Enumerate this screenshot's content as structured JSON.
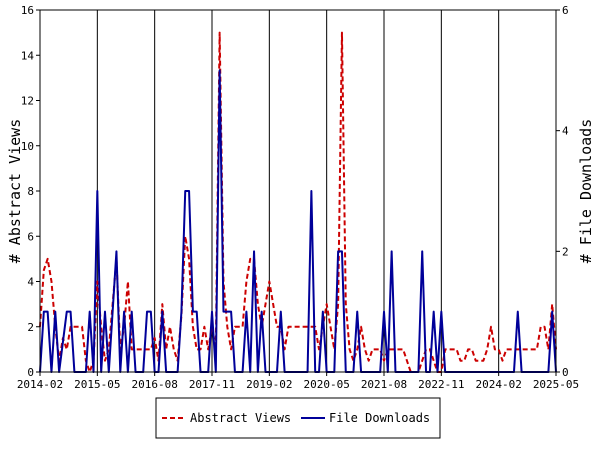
{
  "chart_data": {
    "type": "line",
    "title": "",
    "xlabel": "",
    "ylabel": "# Abstract Views",
    "y2label": "# File Downloads",
    "x_ticks": [
      "2014-02",
      "2015-05",
      "2016-08",
      "2017-11",
      "2019-02",
      "2020-05",
      "2021-08",
      "2022-11",
      "2024-02",
      "2025-05"
    ],
    "xlim": [
      "2014-02",
      "2025-05"
    ],
    "ylim": [
      0,
      16
    ],
    "y_ticks": [
      0,
      2,
      4,
      6,
      8,
      10,
      12,
      14,
      16
    ],
    "y2lim": [
      0,
      6
    ],
    "y2_ticks": [
      0,
      2,
      4,
      6
    ],
    "grid": true,
    "legend_position": "bottom-center",
    "series": [
      {
        "name": "Abstract Views",
        "axis": "left",
        "color": "#cc0000",
        "dash": "dashed",
        "points": [
          [
            "2014-02",
            2
          ],
          [
            "2014-03",
            4.5
          ],
          [
            "2014-04",
            5
          ],
          [
            "2014-05",
            4
          ],
          [
            "2014-06",
            2
          ],
          [
            "2014-07",
            0.5
          ],
          [
            "2014-08",
            1.5
          ],
          [
            "2014-09",
            1
          ],
          [
            "2014-10",
            2
          ],
          [
            "2014-11",
            2
          ],
          [
            "2014-12",
            2
          ],
          [
            "2015-01",
            2
          ],
          [
            "2015-02",
            0.5
          ],
          [
            "2015-03",
            0
          ],
          [
            "2015-04",
            0.5
          ],
          [
            "2015-05",
            4
          ],
          [
            "2015-06",
            2
          ],
          [
            "2015-07",
            0.5
          ],
          [
            "2015-08",
            1
          ],
          [
            "2015-09",
            3
          ],
          [
            "2015-10",
            5
          ],
          [
            "2015-11",
            1
          ],
          [
            "2015-12",
            2
          ],
          [
            "2016-01",
            4
          ],
          [
            "2016-02",
            1
          ],
          [
            "2016-03",
            1
          ],
          [
            "2016-04",
            1
          ],
          [
            "2016-05",
            1
          ],
          [
            "2016-06",
            1
          ],
          [
            "2016-07",
            1
          ],
          [
            "2016-08",
            1.5
          ],
          [
            "2016-09",
            0.5
          ],
          [
            "2016-10",
            3
          ],
          [
            "2016-11",
            1
          ],
          [
            "2016-12",
            2
          ],
          [
            "2017-01",
            1
          ],
          [
            "2017-02",
            0.5
          ],
          [
            "2017-03",
            2.5
          ],
          [
            "2017-04",
            6
          ],
          [
            "2017-05",
            5
          ],
          [
            "2017-06",
            2
          ],
          [
            "2017-07",
            1
          ],
          [
            "2017-08",
            1
          ],
          [
            "2017-09",
            2
          ],
          [
            "2017-10",
            1
          ],
          [
            "2017-11",
            2
          ],
          [
            "2017-12",
            1
          ],
          [
            "2018-01",
            15
          ],
          [
            "2018-02",
            4
          ],
          [
            "2018-03",
            2
          ],
          [
            "2018-04",
            1
          ],
          [
            "2018-05",
            2
          ],
          [
            "2018-06",
            2
          ],
          [
            "2018-07",
            2
          ],
          [
            "2018-08",
            4
          ],
          [
            "2018-09",
            5
          ],
          [
            "2018-10",
            5
          ],
          [
            "2018-11",
            3
          ],
          [
            "2018-12",
            2
          ],
          [
            "2019-01",
            3
          ],
          [
            "2019-02",
            4
          ],
          [
            "2019-03",
            3
          ],
          [
            "2019-04",
            2
          ],
          [
            "2019-05",
            2
          ],
          [
            "2019-06",
            1
          ],
          [
            "2019-07",
            2
          ],
          [
            "2019-08",
            2
          ],
          [
            "2019-09",
            2
          ],
          [
            "2019-10",
            2
          ],
          [
            "2019-11",
            2
          ],
          [
            "2019-12",
            2
          ],
          [
            "2020-01",
            2
          ],
          [
            "2020-02",
            2
          ],
          [
            "2020-03",
            1
          ],
          [
            "2020-04",
            2
          ],
          [
            "2020-05",
            3
          ],
          [
            "2020-06",
            2
          ],
          [
            "2020-07",
            1
          ],
          [
            "2020-08",
            3
          ],
          [
            "2020-09",
            15
          ],
          [
            "2020-10",
            3
          ],
          [
            "2020-11",
            1
          ],
          [
            "2020-12",
            0.5
          ],
          [
            "2021-01",
            1
          ],
          [
            "2021-02",
            2
          ],
          [
            "2021-03",
            1
          ],
          [
            "2021-04",
            0.5
          ],
          [
            "2021-05",
            1
          ],
          [
            "2021-06",
            1
          ],
          [
            "2021-07",
            1
          ],
          [
            "2021-08",
            0.5
          ],
          [
            "2021-09",
            1
          ],
          [
            "2021-10",
            1
          ],
          [
            "2021-11",
            1
          ],
          [
            "2021-12",
            1
          ],
          [
            "2022-01",
            1
          ],
          [
            "2022-02",
            0.5
          ],
          [
            "2022-03",
            0
          ],
          [
            "2022-04",
            0
          ],
          [
            "2022-05",
            0
          ],
          [
            "2022-06",
            0.5
          ],
          [
            "2022-07",
            1
          ],
          [
            "2022-08",
            1
          ],
          [
            "2022-09",
            0.5
          ],
          [
            "2022-10",
            0
          ],
          [
            "2022-11",
            0
          ],
          [
            "2022-12",
            1
          ],
          [
            "2023-01",
            1
          ],
          [
            "2023-02",
            1
          ],
          [
            "2023-03",
            1
          ],
          [
            "2023-04",
            0.5
          ],
          [
            "2023-05",
            0.5
          ],
          [
            "2023-06",
            1
          ],
          [
            "2023-07",
            1
          ],
          [
            "2023-08",
            0.5
          ],
          [
            "2023-09",
            0.5
          ],
          [
            "2023-10",
            0.5
          ],
          [
            "2023-11",
            1
          ],
          [
            "2023-12",
            2
          ],
          [
            "2024-01",
            1
          ],
          [
            "2024-02",
            1
          ],
          [
            "2024-03",
            0.5
          ],
          [
            "2024-04",
            1
          ],
          [
            "2024-05",
            1
          ],
          [
            "2024-06",
            1
          ],
          [
            "2024-07",
            1
          ],
          [
            "2024-08",
            1
          ],
          [
            "2024-09",
            1
          ],
          [
            "2024-10",
            1
          ],
          [
            "2024-11",
            1
          ],
          [
            "2024-12",
            1
          ],
          [
            "2025-01",
            2
          ],
          [
            "2025-02",
            2
          ],
          [
            "2025-03",
            1
          ],
          [
            "2025-04",
            3
          ],
          [
            "2025-05",
            1
          ]
        ]
      },
      {
        "name": "File Downloads",
        "axis": "right",
        "color": "#000099",
        "dash": "solid",
        "points": [
          [
            "2014-02",
            0
          ],
          [
            "2014-03",
            1
          ],
          [
            "2014-04",
            1
          ],
          [
            "2014-05",
            0
          ],
          [
            "2014-06",
            1
          ],
          [
            "2014-07",
            0
          ],
          [
            "2014-08",
            0.5
          ],
          [
            "2014-09",
            1
          ],
          [
            "2014-10",
            1
          ],
          [
            "2014-11",
            0
          ],
          [
            "2014-12",
            0
          ],
          [
            "2015-01",
            0
          ],
          [
            "2015-02",
            0
          ],
          [
            "2015-03",
            1
          ],
          [
            "2015-04",
            0
          ],
          [
            "2015-05",
            3
          ],
          [
            "2015-06",
            0
          ],
          [
            "2015-07",
            1
          ],
          [
            "2015-08",
            0
          ],
          [
            "2015-09",
            1
          ],
          [
            "2015-10",
            2
          ],
          [
            "2015-11",
            0
          ],
          [
            "2015-12",
            1
          ],
          [
            "2016-01",
            0
          ],
          [
            "2016-02",
            1
          ],
          [
            "2016-03",
            0
          ],
          [
            "2016-04",
            0
          ],
          [
            "2016-05",
            0
          ],
          [
            "2016-06",
            1
          ],
          [
            "2016-07",
            1
          ],
          [
            "2016-08",
            0
          ],
          [
            "2016-09",
            0
          ],
          [
            "2016-10",
            1
          ],
          [
            "2016-11",
            0
          ],
          [
            "2016-12",
            0
          ],
          [
            "2017-01",
            0
          ],
          [
            "2017-02",
            0
          ],
          [
            "2017-03",
            1
          ],
          [
            "2017-04",
            3
          ],
          [
            "2017-05",
            3
          ],
          [
            "2017-06",
            1
          ],
          [
            "2017-07",
            1
          ],
          [
            "2017-08",
            0
          ],
          [
            "2017-09",
            0
          ],
          [
            "2017-10",
            0
          ],
          [
            "2017-11",
            1
          ],
          [
            "2017-12",
            0
          ],
          [
            "2018-01",
            5
          ],
          [
            "2018-02",
            1
          ],
          [
            "2018-03",
            1
          ],
          [
            "2018-04",
            1
          ],
          [
            "2018-05",
            0
          ],
          [
            "2018-06",
            0
          ],
          [
            "2018-07",
            0
          ],
          [
            "2018-08",
            1
          ],
          [
            "2018-09",
            0
          ],
          [
            "2018-10",
            2
          ],
          [
            "2018-11",
            0
          ],
          [
            "2018-12",
            1
          ],
          [
            "2019-01",
            0
          ],
          [
            "2019-02",
            0
          ],
          [
            "2019-03",
            0
          ],
          [
            "2019-04",
            0
          ],
          [
            "2019-05",
            1
          ],
          [
            "2019-06",
            0
          ],
          [
            "2019-07",
            0
          ],
          [
            "2019-08",
            0
          ],
          [
            "2019-09",
            0
          ],
          [
            "2019-10",
            0
          ],
          [
            "2019-11",
            0
          ],
          [
            "2019-12",
            0
          ],
          [
            "2020-01",
            3
          ],
          [
            "2020-02",
            0
          ],
          [
            "2020-03",
            0
          ],
          [
            "2020-04",
            1
          ],
          [
            "2020-05",
            0
          ],
          [
            "2020-06",
            0
          ],
          [
            "2020-07",
            0
          ],
          [
            "2020-08",
            2
          ],
          [
            "2020-09",
            2
          ],
          [
            "2020-10",
            0
          ],
          [
            "2020-11",
            0
          ],
          [
            "2020-12",
            0
          ],
          [
            "2021-01",
            1
          ],
          [
            "2021-02",
            0
          ],
          [
            "2021-03",
            0
          ],
          [
            "2021-04",
            0
          ],
          [
            "2021-05",
            0
          ],
          [
            "2021-06",
            0
          ],
          [
            "2021-07",
            0
          ],
          [
            "2021-08",
            1
          ],
          [
            "2021-09",
            0
          ],
          [
            "2021-10",
            2
          ],
          [
            "2021-11",
            0
          ],
          [
            "2021-12",
            0
          ],
          [
            "2022-01",
            0
          ],
          [
            "2022-02",
            0
          ],
          [
            "2022-03",
            0
          ],
          [
            "2022-04",
            0
          ],
          [
            "2022-05",
            0
          ],
          [
            "2022-06",
            2
          ],
          [
            "2022-07",
            0
          ],
          [
            "2022-08",
            0
          ],
          [
            "2022-09",
            1
          ],
          [
            "2022-10",
            0
          ],
          [
            "2022-11",
            1
          ],
          [
            "2022-12",
            0
          ],
          [
            "2023-01",
            0
          ],
          [
            "2023-02",
            0
          ],
          [
            "2023-03",
            0
          ],
          [
            "2023-04",
            0
          ],
          [
            "2023-05",
            0
          ],
          [
            "2023-06",
            0
          ],
          [
            "2023-07",
            0
          ],
          [
            "2023-08",
            0
          ],
          [
            "2023-09",
            0
          ],
          [
            "2023-10",
            0
          ],
          [
            "2023-11",
            0
          ],
          [
            "2023-12",
            0
          ],
          [
            "2024-01",
            0
          ],
          [
            "2024-02",
            0
          ],
          [
            "2024-03",
            0
          ],
          [
            "2024-04",
            0
          ],
          [
            "2024-05",
            0
          ],
          [
            "2024-06",
            0
          ],
          [
            "2024-07",
            1
          ],
          [
            "2024-08",
            0
          ],
          [
            "2024-09",
            0
          ],
          [
            "2024-10",
            0
          ],
          [
            "2024-11",
            0
          ],
          [
            "2024-12",
            0
          ],
          [
            "2025-01",
            0
          ],
          [
            "2025-02",
            0
          ],
          [
            "2025-03",
            0
          ],
          [
            "2025-04",
            1
          ],
          [
            "2025-05",
            0
          ]
        ]
      }
    ]
  }
}
